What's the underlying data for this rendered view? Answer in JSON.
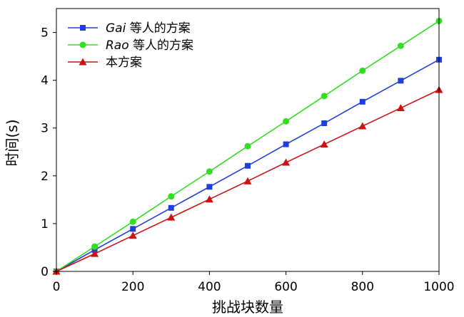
{
  "chart_data": {
    "type": "line",
    "title": "",
    "xlabel": "挑战块数量",
    "ylabel": "时间(s)",
    "xlim": [
      0,
      1000
    ],
    "ylim": [
      0,
      5.5
    ],
    "xticks": [
      0,
      200,
      400,
      600,
      800,
      1000
    ],
    "yticks": [
      0,
      1,
      2,
      3,
      4,
      5
    ],
    "grid": false,
    "legend_position": "top-left",
    "x": [
      0,
      100,
      200,
      300,
      400,
      500,
      600,
      700,
      800,
      900,
      1000
    ],
    "series": [
      {
        "name_italic": "Gai",
        "name_rest": " 等人的方案",
        "color": "#1f3fdc",
        "marker": "square",
        "values": [
          0,
          0.45,
          0.89,
          1.33,
          1.77,
          2.21,
          2.66,
          3.1,
          3.55,
          3.99,
          4.43
        ]
      },
      {
        "name_italic": "Rao",
        "name_rest": " 等人的方案",
        "color": "#33dd22",
        "marker": "circle",
        "values": [
          0,
          0.52,
          1.04,
          1.57,
          2.09,
          2.62,
          3.14,
          3.67,
          4.2,
          4.72,
          5.24
        ]
      },
      {
        "name_italic": "",
        "name_rest": "本方案",
        "color": "#cc1111",
        "marker": "triangle",
        "values": [
          0,
          0.37,
          0.75,
          1.13,
          1.51,
          1.89,
          2.28,
          2.66,
          3.04,
          3.42,
          3.8
        ]
      }
    ]
  }
}
